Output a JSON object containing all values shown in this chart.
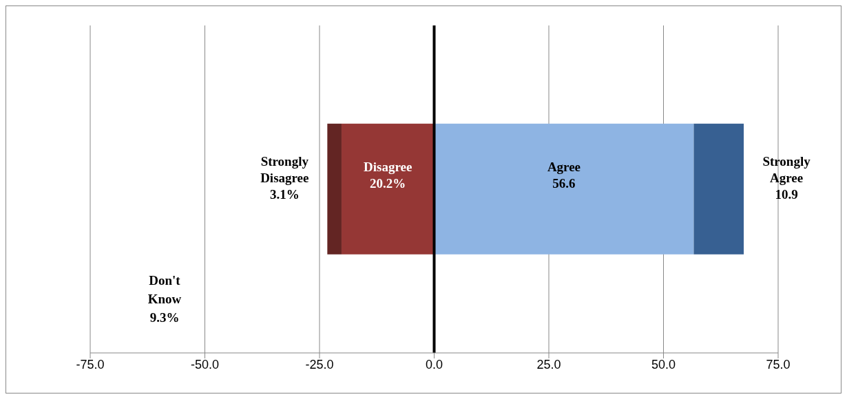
{
  "chart_data": {
    "type": "bar",
    "orientation": "horizontal",
    "categories": [
      null
    ],
    "series": [
      {
        "name": "Disagree",
        "color": "#953735",
        "values": [
          20.2
        ],
        "base": [
          -20.2
        ],
        "value_labels": [
          "20.2%"
        ]
      },
      {
        "name": "Strongly Disagree",
        "color": "#632523",
        "values": [
          3.1
        ],
        "base": [
          -23.3
        ],
        "value_labels": [
          "3.1%"
        ]
      },
      {
        "name": "Agree",
        "color": "#8eb4e3",
        "values": [
          56.6
        ],
        "base": [
          0
        ],
        "value_labels": [
          "56.6"
        ]
      },
      {
        "name": "Strongly Agree",
        "color": "#376092",
        "values": [
          10.9
        ],
        "base": [
          56.6
        ],
        "value_labels": [
          "10.9"
        ]
      }
    ],
    "xlim": [
      -75,
      75
    ],
    "xticks": [
      {
        "value": -75,
        "label": "-75.0"
      },
      {
        "value": -50,
        "label": "-50.0"
      },
      {
        "value": -25,
        "label": "-25.0"
      },
      {
        "value": 0,
        "label": "0.0"
      },
      {
        "value": 25,
        "label": "25.0"
      },
      {
        "value": 50,
        "label": "50.0"
      },
      {
        "value": 75,
        "label": "75.0"
      }
    ],
    "grid": "x",
    "legend": false,
    "ref_lines": [
      {
        "axis": "x",
        "value": 0,
        "color": "#000000"
      }
    ],
    "annotations": [
      "Don't Know 9.3%"
    ]
  }
}
